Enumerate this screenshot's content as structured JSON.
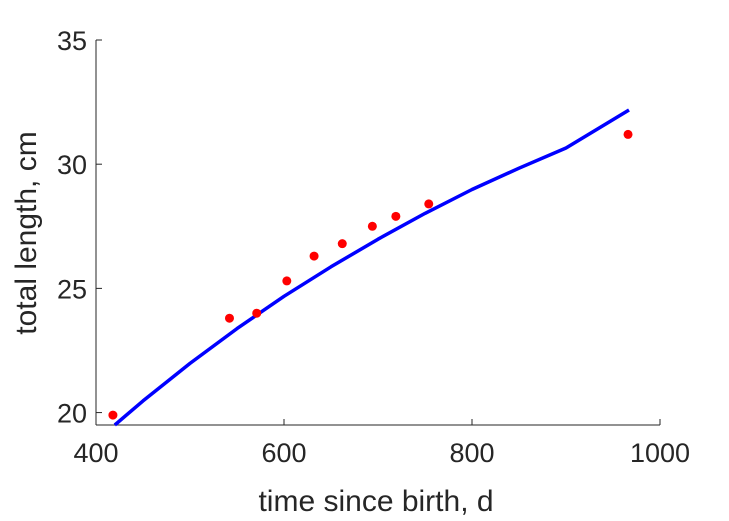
{
  "chart_data": {
    "type": "scatter",
    "title": "",
    "xlabel": "time since birth, d",
    "ylabel": "total length, cm",
    "xlim": [
      400,
      1000
    ],
    "ylim": [
      19.5,
      35
    ],
    "xticks": [
      400,
      600,
      800,
      1000
    ],
    "yticks": [
      20,
      25,
      30,
      35
    ],
    "grid": false,
    "legend": "none",
    "series": [
      {
        "type": "scatter",
        "color": "#ff0000",
        "points": [
          {
            "x": 418,
            "y": 19.9
          },
          {
            "x": 542,
            "y": 23.8
          },
          {
            "x": 571,
            "y": 24.0
          },
          {
            "x": 603,
            "y": 25.3
          },
          {
            "x": 632,
            "y": 26.3
          },
          {
            "x": 662,
            "y": 26.8
          },
          {
            "x": 694,
            "y": 27.5
          },
          {
            "x": 719,
            "y": 27.9
          },
          {
            "x": 754,
            "y": 28.4
          },
          {
            "x": 966,
            "y": 31.2
          }
        ]
      },
      {
        "type": "line",
        "color": "#0000ff",
        "points": [
          {
            "x": 420,
            "y": 19.5
          },
          {
            "x": 450,
            "y": 20.47
          },
          {
            "x": 500,
            "y": 21.98
          },
          {
            "x": 550,
            "y": 23.38
          },
          {
            "x": 600,
            "y": 24.68
          },
          {
            "x": 650,
            "y": 25.87
          },
          {
            "x": 700,
            "y": 26.98
          },
          {
            "x": 750,
            "y": 28.02
          },
          {
            "x": 800,
            "y": 28.98
          },
          {
            "x": 850,
            "y": 29.84
          },
          {
            "x": 900,
            "y": 30.65
          },
          {
            "x": 967,
            "y": 32.18
          }
        ]
      }
    ]
  }
}
